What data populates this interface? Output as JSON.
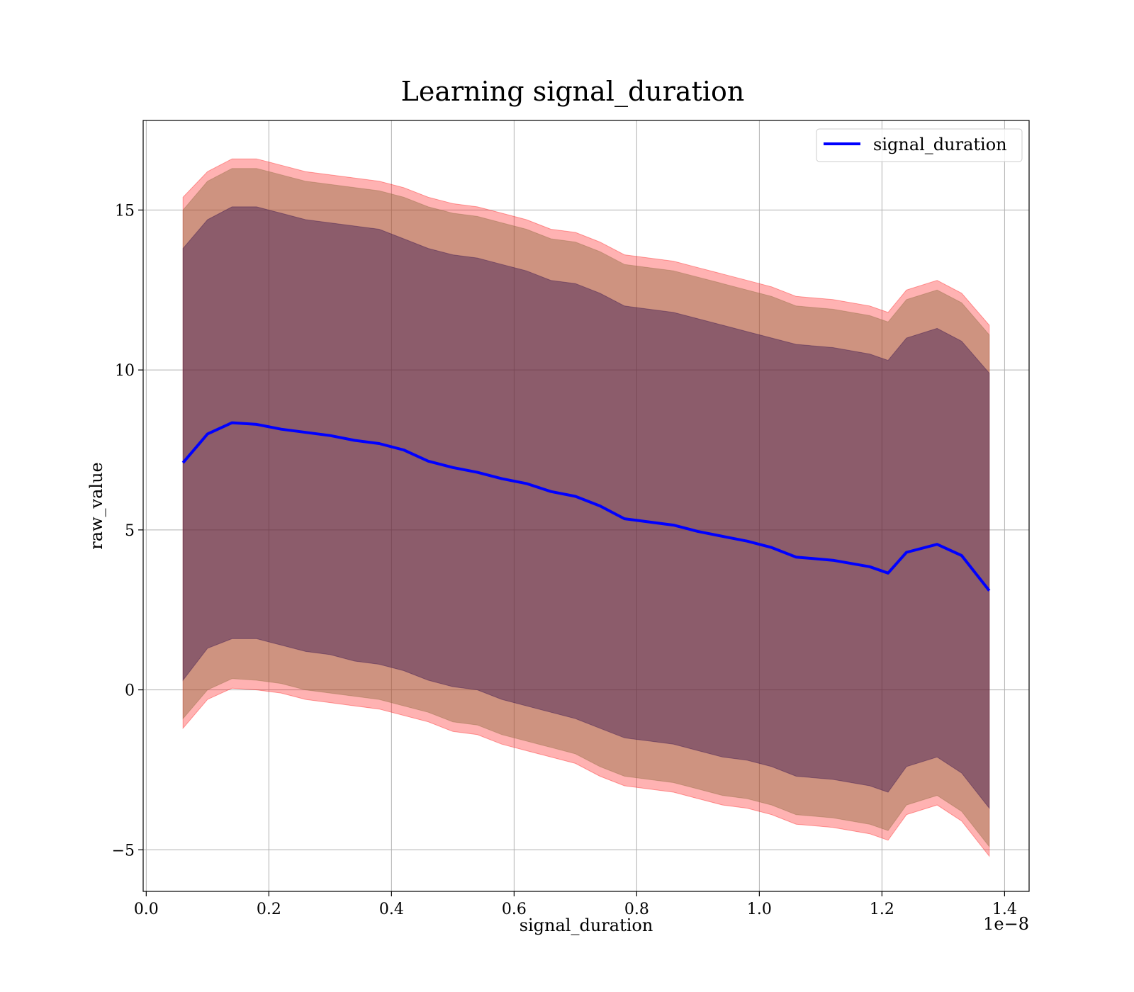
{
  "chart_data": {
    "type": "line",
    "title": "Learning signal_duration",
    "xlabel": "signal_duration",
    "ylabel": "raw_value",
    "x_offset_text": "1e−8",
    "x_scale_factor": 1e-08,
    "xlim": [
      -0.005,
      1.44
    ],
    "ylim": [
      -6.3,
      17.8
    ],
    "x_ticks": [
      0.0,
      0.2,
      0.4,
      0.6,
      0.8,
      1.0,
      1.2,
      1.4
    ],
    "x_tick_labels": [
      "0.0",
      "0.2",
      "0.4",
      "0.6",
      "0.8",
      "1.0",
      "1.2",
      "1.4"
    ],
    "y_ticks": [
      -5,
      0,
      5,
      10,
      15
    ],
    "y_tick_labels": [
      "−5",
      "0",
      "5",
      "10",
      "15"
    ],
    "grid": true,
    "legend": {
      "position": "top-right",
      "entries": [
        "signal_duration"
      ]
    },
    "colors": {
      "line": "#0000ff",
      "band_outer": "#ff0000",
      "band_middle": "#8b6a3b",
      "band_inner": "#2a0a4a",
      "grid": "#b0b0b0"
    },
    "x": [
      0.06,
      0.1,
      0.14,
      0.18,
      0.22,
      0.26,
      0.3,
      0.34,
      0.38,
      0.42,
      0.46,
      0.5,
      0.54,
      0.58,
      0.62,
      0.66,
      0.7,
      0.74,
      0.78,
      0.82,
      0.86,
      0.9,
      0.94,
      0.98,
      1.02,
      1.06,
      1.12,
      1.18,
      1.21,
      1.24,
      1.29,
      1.33,
      1.375
    ],
    "series": [
      {
        "name": "signal_duration",
        "values": [
          7.1,
          8.0,
          8.35,
          8.3,
          8.15,
          8.05,
          7.95,
          7.8,
          7.7,
          7.5,
          7.15,
          6.95,
          6.8,
          6.6,
          6.45,
          6.2,
          6.05,
          5.75,
          5.35,
          5.25,
          5.15,
          4.95,
          4.8,
          4.65,
          4.45,
          4.15,
          4.05,
          3.85,
          3.65,
          4.3,
          4.55,
          4.2,
          3.1
        ]
      }
    ],
    "bands": [
      {
        "level": "outer",
        "upper": [
          15.4,
          16.2,
          16.6,
          16.6,
          16.4,
          16.2,
          16.1,
          16.0,
          15.9,
          15.7,
          15.4,
          15.2,
          15.1,
          14.9,
          14.7,
          14.4,
          14.3,
          14.0,
          13.6,
          13.5,
          13.4,
          13.2,
          13.0,
          12.8,
          12.6,
          12.3,
          12.2,
          12.0,
          11.8,
          12.5,
          12.8,
          12.4,
          11.4
        ],
        "lower": [
          -1.2,
          -0.3,
          0.05,
          0.0,
          -0.1,
          -0.3,
          -0.4,
          -0.5,
          -0.6,
          -0.8,
          -1.0,
          -1.3,
          -1.4,
          -1.7,
          -1.9,
          -2.1,
          -2.3,
          -2.7,
          -3.0,
          -3.1,
          -3.2,
          -3.4,
          -3.6,
          -3.7,
          -3.9,
          -4.2,
          -4.3,
          -4.5,
          -4.7,
          -3.9,
          -3.6,
          -4.1,
          -5.2
        ]
      },
      {
        "level": "middle",
        "upper": [
          15.0,
          15.9,
          16.3,
          16.3,
          16.1,
          15.9,
          15.8,
          15.7,
          15.6,
          15.4,
          15.1,
          14.9,
          14.8,
          14.6,
          14.4,
          14.1,
          14.0,
          13.7,
          13.3,
          13.2,
          13.1,
          12.9,
          12.7,
          12.5,
          12.3,
          12.0,
          11.9,
          11.7,
          11.5,
          12.2,
          12.5,
          12.1,
          11.1
        ],
        "lower": [
          -0.9,
          0.0,
          0.35,
          0.3,
          0.2,
          0.0,
          -0.1,
          -0.2,
          -0.3,
          -0.5,
          -0.7,
          -1.0,
          -1.1,
          -1.4,
          -1.6,
          -1.8,
          -2.0,
          -2.4,
          -2.7,
          -2.8,
          -2.9,
          -3.1,
          -3.3,
          -3.4,
          -3.6,
          -3.9,
          -4.0,
          -4.2,
          -4.4,
          -3.6,
          -3.3,
          -3.8,
          -4.9
        ]
      },
      {
        "level": "inner",
        "upper": [
          13.8,
          14.7,
          15.1,
          15.1,
          14.9,
          14.7,
          14.6,
          14.5,
          14.4,
          14.1,
          13.8,
          13.6,
          13.5,
          13.3,
          13.1,
          12.8,
          12.7,
          12.4,
          12.0,
          11.9,
          11.8,
          11.6,
          11.4,
          11.2,
          11.0,
          10.8,
          10.7,
          10.5,
          10.3,
          11.0,
          11.3,
          10.9,
          9.9
        ],
        "lower": [
          0.3,
          1.3,
          1.6,
          1.6,
          1.4,
          1.2,
          1.1,
          0.9,
          0.8,
          0.6,
          0.3,
          0.1,
          0.0,
          -0.3,
          -0.5,
          -0.7,
          -0.9,
          -1.2,
          -1.5,
          -1.6,
          -1.7,
          -1.9,
          -2.1,
          -2.2,
          -2.4,
          -2.7,
          -2.8,
          -3.0,
          -3.2,
          -2.4,
          -2.1,
          -2.6,
          -3.7
        ]
      }
    ]
  }
}
